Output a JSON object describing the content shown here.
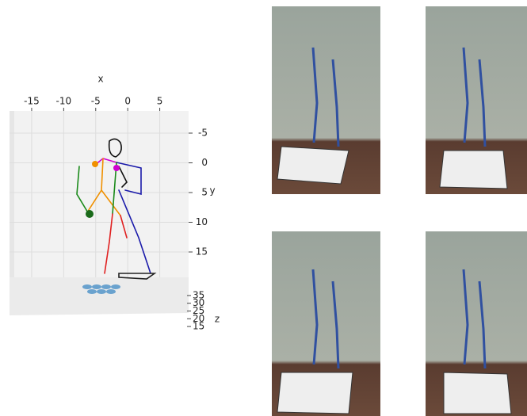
{
  "chart_data": {
    "type": "skeleton3d",
    "xlabel": "x",
    "ylabel": "y",
    "zlabel": "z",
    "xlim": [
      -18,
      10
    ],
    "xticks": [
      -15,
      -10,
      -5,
      0,
      5
    ],
    "ylim": [
      -8,
      20
    ],
    "yticks": [
      -5,
      0,
      5,
      10,
      15
    ],
    "zlim": [
      14,
      36
    ],
    "zticks": [
      15,
      20,
      25,
      30,
      35
    ],
    "grid": true
  }
}
